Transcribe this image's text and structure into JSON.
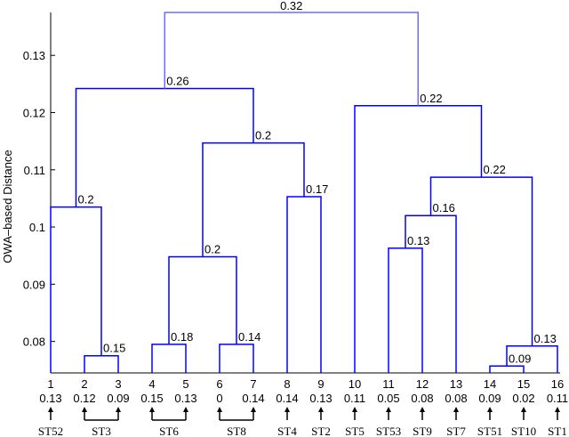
{
  "chart_data": {
    "type": "dendrogram",
    "title": "",
    "xlabel": "",
    "ylabel": "OWA–based Distance",
    "ylim": [
      0.0745,
      0.1375
    ],
    "yticks": [
      0.08,
      0.09,
      0.1,
      0.11,
      0.12,
      0.13
    ],
    "ytick_labels": [
      "0.08",
      "0.09",
      "0.1",
      "0.11",
      "0.12",
      "0.13"
    ],
    "line_color": "#0000ff",
    "leaves": [
      {
        "index": "1",
        "value": "0.13",
        "group": "ST52"
      },
      {
        "index": "2",
        "value": "0.12",
        "group": "ST3"
      },
      {
        "index": "3",
        "value": "0.09",
        "group": "ST3"
      },
      {
        "index": "4",
        "value": "0.15",
        "group": "ST6"
      },
      {
        "index": "5",
        "value": "0.13",
        "group": "ST6"
      },
      {
        "index": "6",
        "value": "0",
        "group": "ST8"
      },
      {
        "index": "7",
        "value": "0.14",
        "group": "ST8"
      },
      {
        "index": "8",
        "value": "0.14",
        "group": "ST4"
      },
      {
        "index": "9",
        "value": "0.13",
        "group": "ST2"
      },
      {
        "index": "10",
        "value": "0.11",
        "group": "ST5"
      },
      {
        "index": "11",
        "value": "0.05",
        "group": "ST53"
      },
      {
        "index": "12",
        "value": "0.08",
        "group": "ST9"
      },
      {
        "index": "13",
        "value": "0.08",
        "group": "ST7"
      },
      {
        "index": "14",
        "value": "0.09",
        "group": "ST51"
      },
      {
        "index": "15",
        "value": "0.02",
        "group": "ST10"
      },
      {
        "index": "16",
        "value": "0.11",
        "group": "ST1"
      }
    ],
    "groups": [
      {
        "label": "ST52",
        "leaves": [
          1
        ]
      },
      {
        "label": "ST3",
        "leaves": [
          2,
          3
        ]
      },
      {
        "label": "ST6",
        "leaves": [
          4,
          5
        ]
      },
      {
        "label": "ST8",
        "leaves": [
          6,
          7
        ]
      },
      {
        "label": "ST4",
        "leaves": [
          8
        ]
      },
      {
        "label": "ST2",
        "leaves": [
          9
        ]
      },
      {
        "label": "ST5",
        "leaves": [
          10
        ]
      },
      {
        "label": "ST53",
        "leaves": [
          11
        ]
      },
      {
        "label": "ST9",
        "leaves": [
          12
        ]
      },
      {
        "label": "ST7",
        "leaves": [
          13
        ]
      },
      {
        "label": "ST51",
        "leaves": [
          14
        ]
      },
      {
        "label": "ST10",
        "leaves": [
          15
        ]
      },
      {
        "label": "ST1",
        "leaves": [
          16
        ]
      }
    ],
    "merges": [
      {
        "id": "m1",
        "children": [
          "2",
          "3"
        ],
        "height": 0.0775,
        "label": "0.15"
      },
      {
        "id": "m2",
        "children": [
          "1",
          "m1"
        ],
        "height": 0.1035,
        "label": "0.2"
      },
      {
        "id": "m3",
        "children": [
          "4",
          "5"
        ],
        "height": 0.0795,
        "label": "0.18"
      },
      {
        "id": "m4",
        "children": [
          "6",
          "7"
        ],
        "height": 0.0795,
        "label": "0.14"
      },
      {
        "id": "m5",
        "children": [
          "m3",
          "m4"
        ],
        "height": 0.0948,
        "label": "0.2"
      },
      {
        "id": "m6",
        "children": [
          "8",
          "9"
        ],
        "height": 0.1053,
        "label": "0.17"
      },
      {
        "id": "m7",
        "children": [
          "m5",
          "m6"
        ],
        "height": 0.1147,
        "label": "0.2"
      },
      {
        "id": "m8",
        "children": [
          "m2",
          "m7"
        ],
        "height": 0.1242,
        "label": "0.26"
      },
      {
        "id": "m9",
        "children": [
          "11",
          "12"
        ],
        "height": 0.0963,
        "label": "0.13"
      },
      {
        "id": "m10",
        "children": [
          "m9",
          "13"
        ],
        "height": 0.102,
        "label": "0.16"
      },
      {
        "id": "m11",
        "children": [
          "14",
          "15"
        ],
        "height": 0.0757,
        "label": "0.09"
      },
      {
        "id": "m12",
        "children": [
          "m11",
          "16"
        ],
        "height": 0.0792,
        "label": "0.13"
      },
      {
        "id": "m13",
        "children": [
          "m10",
          "m12"
        ],
        "height": 0.1087,
        "label": "0.22"
      },
      {
        "id": "m14",
        "children": [
          "10",
          "m13"
        ],
        "height": 0.1212,
        "label": "0.22"
      },
      {
        "id": "m15",
        "children": [
          "m8",
          "m14"
        ],
        "height": 0.1375,
        "label": "0.32"
      }
    ]
  }
}
